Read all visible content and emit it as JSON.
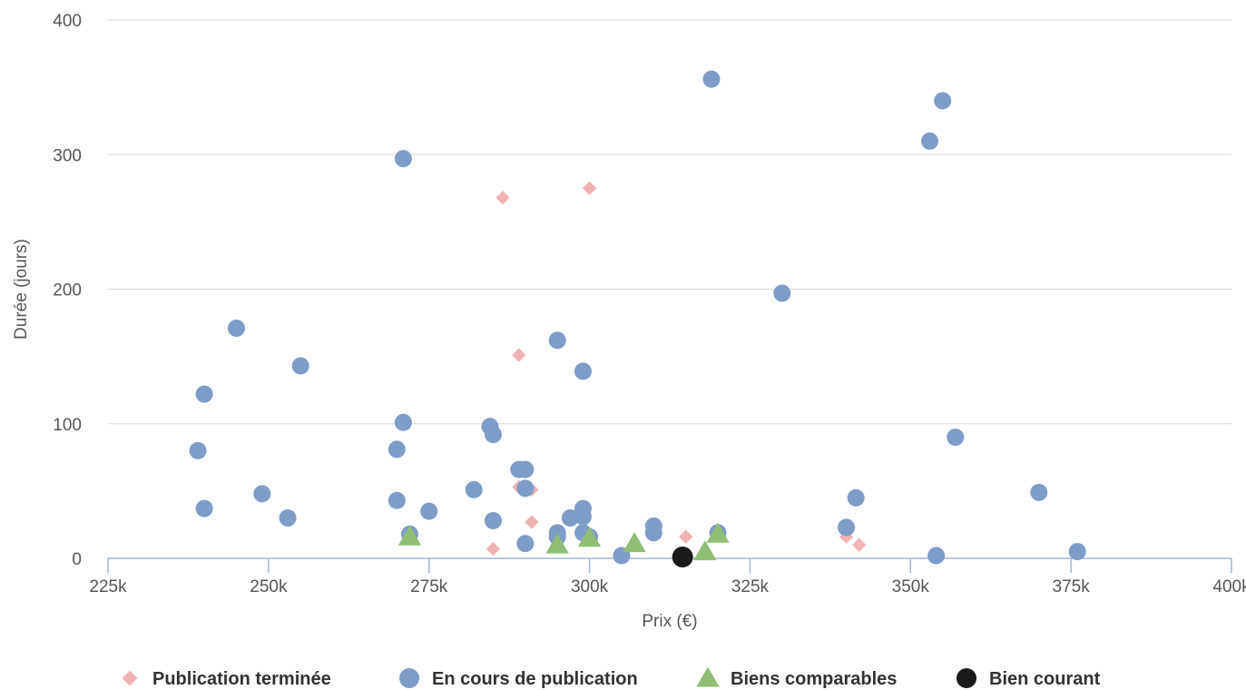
{
  "chart_data": {
    "type": "scatter",
    "xlabel": "Prix (€)",
    "ylabel": "Durée (jours)",
    "xlim": [
      225000,
      400000
    ],
    "ylim": [
      0,
      400
    ],
    "x_ticks": [
      {
        "value": 225000,
        "label": "225k"
      },
      {
        "value": 250000,
        "label": "250k"
      },
      {
        "value": 275000,
        "label": "275k"
      },
      {
        "value": 300000,
        "label": "300k"
      },
      {
        "value": 325000,
        "label": "325k"
      },
      {
        "value": 350000,
        "label": "350k"
      },
      {
        "value": 375000,
        "label": "375k"
      },
      {
        "value": 400000,
        "label": "400k"
      }
    ],
    "y_ticks": [
      {
        "value": 0,
        "label": "0"
      },
      {
        "value": 100,
        "label": "100"
      },
      {
        "value": 200,
        "label": "200"
      },
      {
        "value": 300,
        "label": "300"
      },
      {
        "value": 400,
        "label": "400"
      }
    ],
    "grid": "horizontal",
    "legend_position": "bottom",
    "series": [
      {
        "name": "Publication terminée",
        "marker": "diamond",
        "color": "#f0b2b2",
        "points": [
          {
            "x": 286500,
            "y": 268
          },
          {
            "x": 300000,
            "y": 275
          },
          {
            "x": 289000,
            "y": 151
          },
          {
            "x": 289000,
            "y": 53
          },
          {
            "x": 291000,
            "y": 51
          },
          {
            "x": 291000,
            "y": 27
          },
          {
            "x": 285000,
            "y": 7
          },
          {
            "x": 315000,
            "y": 16
          },
          {
            "x": 340000,
            "y": 16
          },
          {
            "x": 342000,
            "y": 10
          }
        ]
      },
      {
        "name": "En cours de publication",
        "marker": "circle",
        "color": "#7d9cc8",
        "points": [
          {
            "x": 271000,
            "y": 297
          },
          {
            "x": 319000,
            "y": 356
          },
          {
            "x": 353000,
            "y": 310
          },
          {
            "x": 355000,
            "y": 340
          },
          {
            "x": 330000,
            "y": 197
          },
          {
            "x": 245000,
            "y": 171
          },
          {
            "x": 255000,
            "y": 143
          },
          {
            "x": 240000,
            "y": 122
          },
          {
            "x": 239000,
            "y": 80
          },
          {
            "x": 240000,
            "y": 37
          },
          {
            "x": 249000,
            "y": 48
          },
          {
            "x": 253000,
            "y": 30
          },
          {
            "x": 271000,
            "y": 101
          },
          {
            "x": 270000,
            "y": 81
          },
          {
            "x": 270000,
            "y": 43
          },
          {
            "x": 272000,
            "y": 18
          },
          {
            "x": 275000,
            "y": 35
          },
          {
            "x": 282000,
            "y": 51
          },
          {
            "x": 284500,
            "y": 98
          },
          {
            "x": 285000,
            "y": 92
          },
          {
            "x": 285000,
            "y": 28
          },
          {
            "x": 289000,
            "y": 66
          },
          {
            "x": 290000,
            "y": 66
          },
          {
            "x": 290000,
            "y": 52
          },
          {
            "x": 290000,
            "y": 11
          },
          {
            "x": 295000,
            "y": 162
          },
          {
            "x": 299000,
            "y": 139
          },
          {
            "x": 295000,
            "y": 19
          },
          {
            "x": 295000,
            "y": 16
          },
          {
            "x": 297000,
            "y": 30
          },
          {
            "x": 299000,
            "y": 37
          },
          {
            "x": 299000,
            "y": 31
          },
          {
            "x": 299000,
            "y": 19
          },
          {
            "x": 300000,
            "y": 16
          },
          {
            "x": 305000,
            "y": 2
          },
          {
            "x": 310000,
            "y": 24
          },
          {
            "x": 310000,
            "y": 19
          },
          {
            "x": 320000,
            "y": 19
          },
          {
            "x": 340000,
            "y": 23
          },
          {
            "x": 341500,
            "y": 45
          },
          {
            "x": 357000,
            "y": 90
          },
          {
            "x": 354000,
            "y": 2
          },
          {
            "x": 370000,
            "y": 49
          },
          {
            "x": 376000,
            "y": 5
          }
        ]
      },
      {
        "name": "Biens comparables",
        "marker": "triangle",
        "color": "#8fbf74",
        "points": [
          {
            "x": 272000,
            "y": 16
          },
          {
            "x": 295000,
            "y": 10
          },
          {
            "x": 300000,
            "y": 15
          },
          {
            "x": 307000,
            "y": 11
          },
          {
            "x": 318000,
            "y": 5
          },
          {
            "x": 320000,
            "y": 18
          }
        ]
      },
      {
        "name": "Bien courant",
        "marker": "circle",
        "color": "#1a1a1a",
        "points": [
          {
            "x": 314500,
            "y": 1
          }
        ]
      }
    ]
  }
}
